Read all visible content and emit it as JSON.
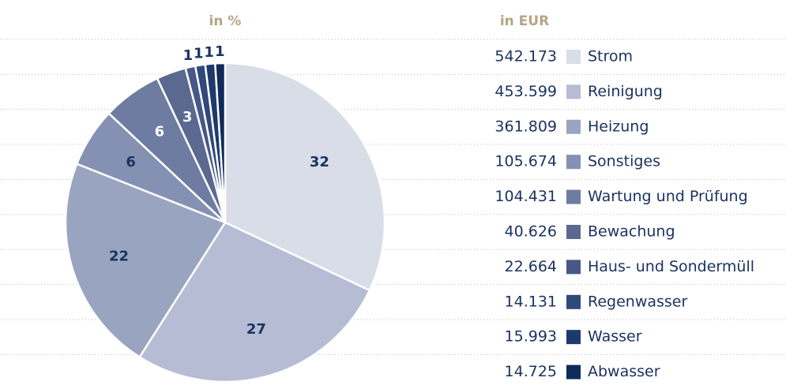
{
  "chart_data": {
    "type": "pie",
    "pie_title": "in %",
    "legend_title": "in EUR",
    "categories": [
      "Strom",
      "Reinigung",
      "Heizung",
      "Sonstiges",
      "Wartung und Prüfung",
      "Bewachung",
      "Haus- und Sondermüll",
      "Regenwasser",
      "Wasser",
      "Abwasser"
    ],
    "values": [
      32,
      27,
      22,
      6,
      6,
      3,
      1,
      1,
      1,
      1
    ],
    "eur_values": [
      542173,
      453599,
      361809,
      105674,
      104431,
      40626,
      22664,
      14131,
      15993,
      14725
    ],
    "eur_value_labels": [
      "542.173",
      "453.599",
      "361.809",
      "105.674",
      "104.431",
      "40.626",
      "22.664",
      "14.131",
      "15.993",
      "14.725"
    ],
    "colors": [
      "#d9dde8",
      "#b6bcd3",
      "#99a4c1",
      "#8591b2",
      "#6e7ca1",
      "#5b6991",
      "#465886",
      "#30497b",
      "#1e3a6c",
      "#102b59"
    ],
    "label_colors": [
      "#1c3360",
      "#1c3360",
      "#1c3360",
      "#1c3360",
      "#ffffff",
      "#ffffff",
      "#1c3360",
      "#1c3360",
      "#1c3360",
      "#1c3360"
    ]
  }
}
